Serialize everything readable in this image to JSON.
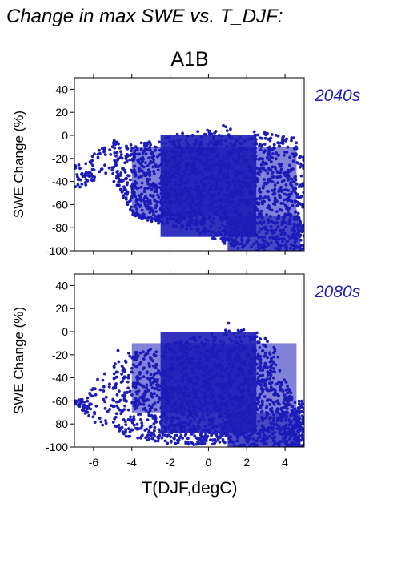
{
  "figure": {
    "title": "Change in max SWE vs. T_DJF:",
    "scenario": "A1B",
    "xlabel": "T(DJF,degC)",
    "point_color": "#1c1cb8"
  },
  "chart_data": [
    {
      "type": "scatter",
      "period_label": "2040s",
      "ylabel": "SWE Change (%)",
      "xlim": [
        -7,
        5
      ],
      "ylim": [
        -100,
        50
      ],
      "yticks": [
        40,
        20,
        0,
        -20,
        -40,
        -60,
        -80,
        -100
      ],
      "xticks": [
        -6,
        -4,
        -2,
        0,
        2,
        4
      ],
      "grid": false,
      "envelope": {
        "x": [
          -7.0,
          -6.5,
          -6.0,
          -5.5,
          -5.0,
          -4.5,
          -4.0,
          -3.0,
          -2.0,
          -1.0,
          0.0,
          0.5,
          1.0,
          1.5,
          2.0,
          2.5,
          3.0,
          3.5,
          4.0,
          4.5,
          5.0
        ],
        "upper": [
          -25,
          -22,
          -15,
          -8,
          -3,
          -4,
          -8,
          -5,
          0,
          4,
          6,
          8,
          9,
          8,
          5,
          4,
          3,
          2,
          1,
          0,
          -20
        ],
        "lower": [
          -45,
          -45,
          -40,
          -35,
          -38,
          -55,
          -70,
          -75,
          -78,
          -82,
          -88,
          -92,
          -95,
          -98,
          -100,
          -100,
          -100,
          -100,
          -100,
          -100,
          -100
        ]
      }
    },
    {
      "type": "scatter",
      "period_label": "2080s",
      "ylabel": "SWE Change (%)",
      "xlim": [
        -7,
        5
      ],
      "ylim": [
        -100,
        50
      ],
      "yticks": [
        40,
        20,
        0,
        -20,
        -40,
        -60,
        -80,
        -100
      ],
      "xticks": [
        -6,
        -4,
        -2,
        0,
        2,
        4
      ],
      "grid": false,
      "envelope": {
        "x": [
          -7.0,
          -6.5,
          -6.0,
          -5.5,
          -5.0,
          -4.5,
          -4.0,
          -3.0,
          -2.0,
          -1.0,
          0.0,
          0.5,
          1.0,
          1.5,
          2.0,
          2.5,
          3.0,
          3.5,
          4.0,
          4.5,
          5.0
        ],
        "upper": [
          -60,
          -58,
          -45,
          -30,
          -18,
          -15,
          -18,
          -15,
          -6,
          -3,
          0,
          5,
          8,
          4,
          1,
          0,
          -2,
          -15,
          -40,
          -60,
          -60
        ],
        "lower": [
          -62,
          -70,
          -78,
          -82,
          -85,
          -90,
          -94,
          -96,
          -97,
          -98,
          -98,
          -99,
          -99,
          -100,
          -100,
          -100,
          -100,
          -100,
          -100,
          -100,
          -100
        ]
      }
    }
  ]
}
